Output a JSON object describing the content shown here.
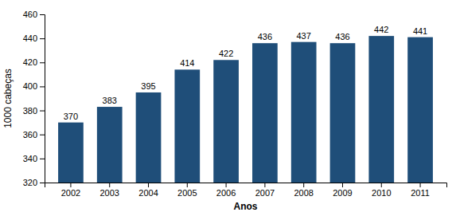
{
  "chart_data": {
    "type": "bar",
    "categories": [
      "2002",
      "2003",
      "2004",
      "2005",
      "2006",
      "2007",
      "2008",
      "2009",
      "2010",
      "2011"
    ],
    "values": [
      370,
      383,
      395,
      414,
      422,
      436,
      437,
      436,
      442,
      441
    ],
    "color": "#1F4E79",
    "xlabel": "Anos",
    "ylabel": "1000 cabeças",
    "ylim": [
      320,
      460
    ],
    "yticks": [
      320,
      340,
      360,
      380,
      400,
      420,
      440,
      460
    ],
    "grid": false,
    "data_labels": true
  }
}
